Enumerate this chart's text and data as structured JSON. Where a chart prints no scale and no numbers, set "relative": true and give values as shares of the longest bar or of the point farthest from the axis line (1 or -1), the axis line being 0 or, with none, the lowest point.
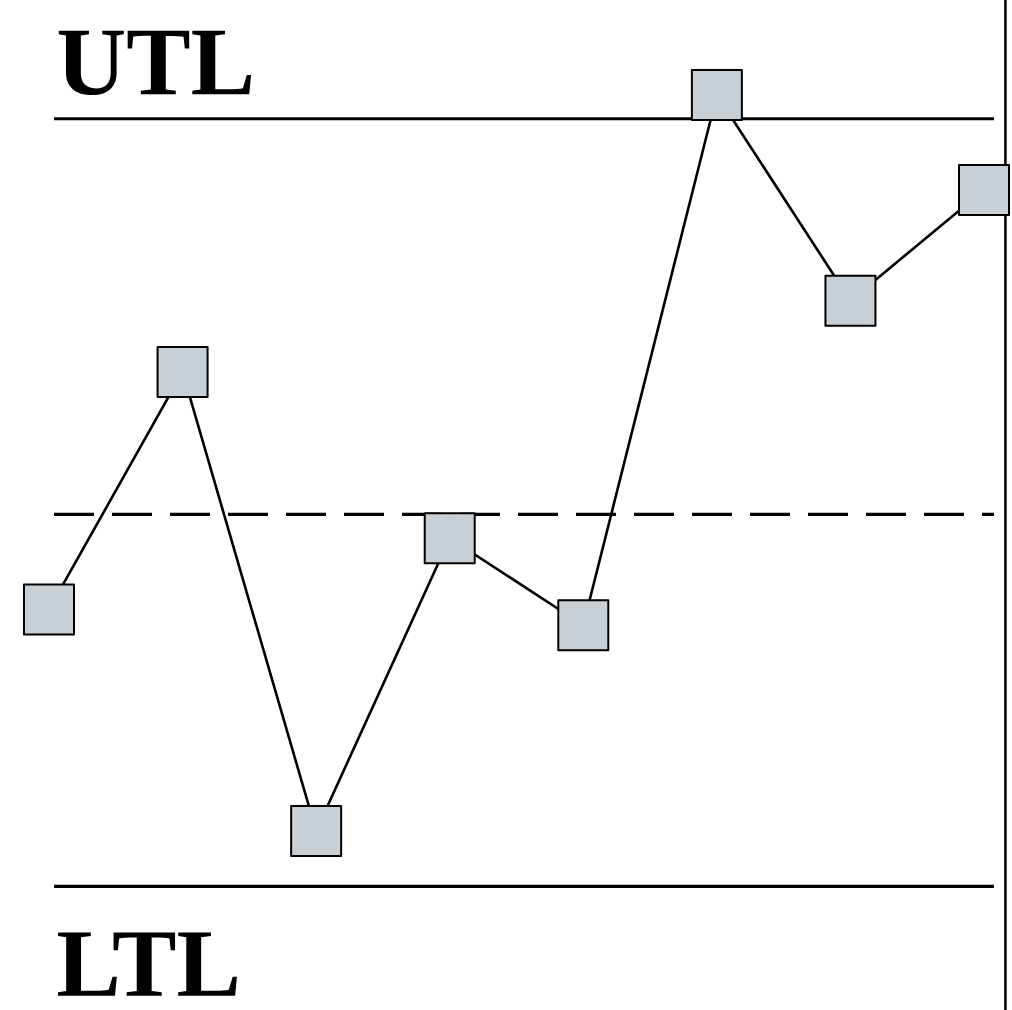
{
  "chart_data": {
    "type": "line",
    "relative": true,
    "categories": [
      null,
      null,
      null,
      null,
      null,
      null,
      null,
      null
    ],
    "series": [
      {
        "color": "#000000",
        "values": [
          0.35,
          0.65,
          0.07,
          0.44,
          0.33,
          1,
          0.74,
          0.88
        ]
      }
    ],
    "marker": "square",
    "line_style": "solid",
    "ref_lines": [
      {
        "axis": "y",
        "value": 0.97,
        "label": "UTL"
      },
      {
        "axis": "y",
        "value": 0.47,
        "line_style": "dashed"
      },
      {
        "axis": "y",
        "value": 0,
        "label": "LTL"
      }
    ]
  }
}
